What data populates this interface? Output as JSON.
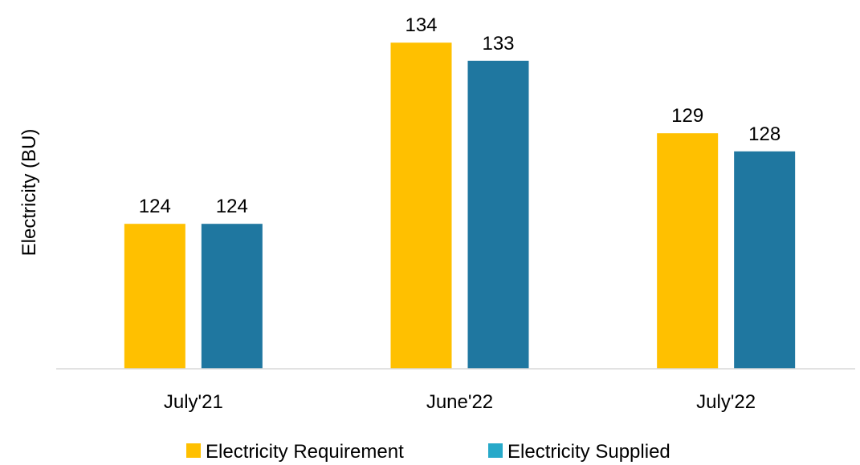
{
  "chart_data": {
    "type": "bar",
    "title": "",
    "xlabel": "",
    "ylabel": "Electricity (BU)",
    "categories": [
      "July'21",
      "June'22",
      "July'22"
    ],
    "series": [
      {
        "name": "Electricity Requirement",
        "values": [
          124,
          134,
          129
        ],
        "color": "#FFC000"
      },
      {
        "name": "Electricity Supplied",
        "values": [
          124,
          133,
          128
        ],
        "color": "#1F77A0"
      }
    ],
    "data_labels": [
      [
        "124",
        "124"
      ],
      [
        "134",
        "133"
      ],
      [
        "129",
        "128"
      ]
    ],
    "ylim": [
      116,
      136
    ],
    "grid": false,
    "legend_position": "bottom-center",
    "axis_color": "#D9D9D9",
    "legend_swatch_colors": [
      "#FFC000",
      "#27A9C9"
    ]
  }
}
